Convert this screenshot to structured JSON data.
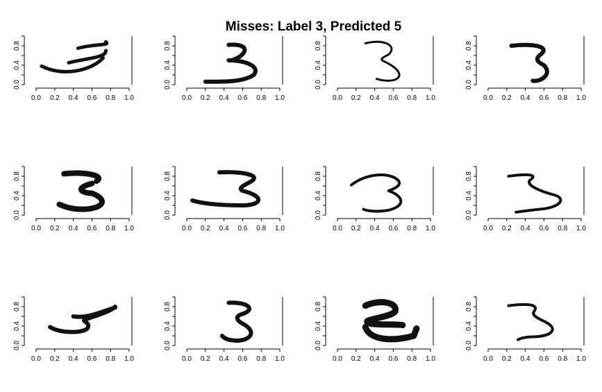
{
  "title": "Misses: Label 3, Predicted 5",
  "chart_data": {
    "type": "image-grid",
    "title": "Misses: Label 3, Predicted 5",
    "rows": 3,
    "cols": 4,
    "xlim": [
      0,
      1
    ],
    "ylim": [
      0,
      1
    ],
    "x_ticks": [
      "0.0",
      "0.2",
      "0.4",
      "0.6",
      "0.8",
      "1.0"
    ],
    "y_ticks": [
      "0.0",
      "0.4",
      "0.8"
    ],
    "panels": [
      {
        "label": 3,
        "predicted": 5
      },
      {
        "label": 3,
        "predicted": 5
      },
      {
        "label": 3,
        "predicted": 5
      },
      {
        "label": 3,
        "predicted": 5
      },
      {
        "label": 3,
        "predicted": 5
      },
      {
        "label": 3,
        "predicted": 5
      },
      {
        "label": 3,
        "predicted": 5
      },
      {
        "label": 3,
        "predicted": 5
      },
      {
        "label": 3,
        "predicted": 5
      },
      {
        "label": 3,
        "predicted": 5
      },
      {
        "label": 3,
        "predicted": 5
      },
      {
        "label": 3,
        "predicted": 5
      }
    ]
  }
}
